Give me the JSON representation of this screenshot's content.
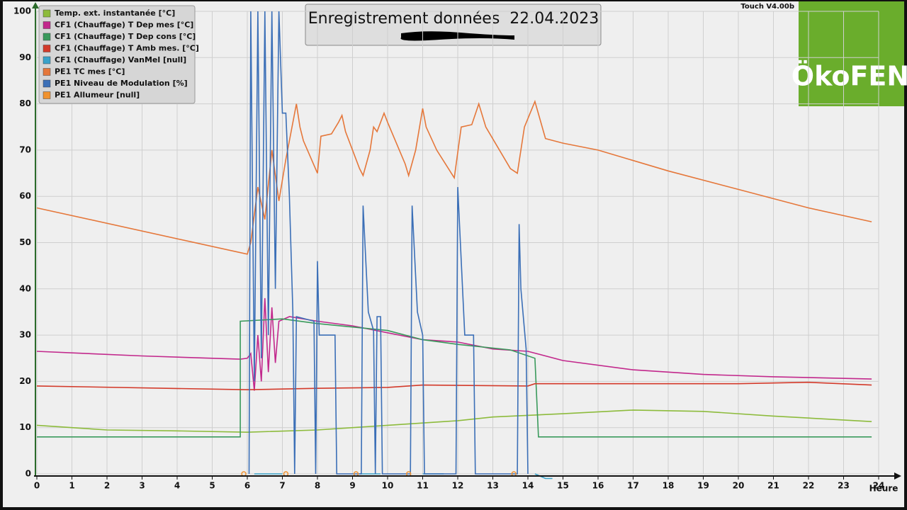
{
  "header": {
    "version": "Touch V4.00b",
    "logo": "ÖkoFEN"
  },
  "chart_data": {
    "type": "line",
    "title": "Enregistrement données  22.04.2023",
    "x_label": "Heure",
    "xlim": [
      0,
      24
    ],
    "ylim": [
      0,
      100
    ],
    "xticks": [
      0,
      1,
      2,
      3,
      4,
      5,
      6,
      7,
      8,
      9,
      10,
      11,
      12,
      13,
      14,
      15,
      16,
      17,
      18,
      19,
      20,
      21,
      22,
      23,
      24
    ],
    "yticks": [
      0,
      10,
      20,
      30,
      40,
      50,
      60,
      70,
      80,
      90,
      100
    ],
    "grid": true,
    "legend": "top-left",
    "series": [
      {
        "name": "Temp. ext. instantanée [°C]",
        "color": "#8dbb3c",
        "x": [
          0,
          2,
          4,
          6,
          8,
          10,
          12,
          13,
          15,
          17,
          19,
          21,
          23.8
        ],
        "values": [
          10.5,
          9.5,
          9.3,
          9,
          9.5,
          10.5,
          11.5,
          12.3,
          13,
          13.8,
          13.5,
          12.5,
          11.3
        ]
      },
      {
        "name": "CF1 (Chauffage) T Dep mes [°C]",
        "color": "#c2288c",
        "x": [
          0,
          3,
          5.8,
          6,
          6.1,
          6.2,
          6.3,
          6.4,
          6.5,
          6.6,
          6.7,
          6.8,
          6.9,
          7.2,
          8,
          9,
          10,
          11,
          12,
          13,
          14,
          15,
          17,
          19,
          21,
          23.8
        ],
        "values": [
          26.5,
          25.5,
          24.8,
          25,
          26,
          18,
          30,
          20,
          38,
          22,
          36,
          24,
          33,
          34,
          33,
          32,
          30.5,
          29,
          28.5,
          27,
          26.5,
          24.5,
          22.5,
          21.5,
          21,
          20.5
        ]
      },
      {
        "name": "CF1 (Chauffage) T Dep cons [°C]",
        "color": "#3a9a5c",
        "x": [
          0,
          5.8,
          5.8,
          7,
          8,
          10,
          11,
          12,
          13.5,
          14.2,
          14.3,
          23.8
        ],
        "values": [
          8,
          8,
          33,
          33.5,
          32.5,
          31,
          29,
          28,
          26.8,
          25,
          8,
          8
        ]
      },
      {
        "name": "CF1 (Chauffage) T Amb mes. [°C]",
        "color": "#d33a2a",
        "x": [
          0,
          6,
          8,
          10,
          11,
          14,
          14.2,
          20,
          22,
          23.8
        ],
        "values": [
          19,
          18.2,
          18.5,
          18.7,
          19.2,
          19,
          19.5,
          19.5,
          19.8,
          19.2
        ]
      },
      {
        "name": "CF1 (Chauffage) VanMel [null]",
        "color": "#3aa2c9",
        "x": [
          6.2,
          7,
          7.1,
          9.2,
          9.8,
          9.9,
          11,
          11.6,
          11.7,
          14.2,
          14.5,
          14.7
        ],
        "values": [
          0,
          0,
          null,
          0,
          0,
          null,
          0,
          0,
          null,
          0,
          -1,
          -1
        ]
      },
      {
        "name": "PE1 TC mes [°C]",
        "color": "#e5773a",
        "x": [
          0,
          6,
          6.1,
          6.3,
          6.5,
          6.7,
          6.9,
          7.1,
          7.4,
          7.5,
          7.6,
          8,
          8.1,
          8.4,
          8.6,
          8.7,
          8.8,
          9.2,
          9.3,
          9.5,
          9.6,
          9.7,
          9.9,
          10,
          10.5,
          10.6,
          10.8,
          11,
          11.1,
          11.4,
          11.9,
          12.1,
          12.4,
          12.6,
          12.8,
          13.5,
          13.7,
          13.9,
          14.2,
          14.5,
          15,
          16,
          18,
          20,
          22,
          23.8
        ],
        "values": [
          57.5,
          47.5,
          50,
          62,
          55,
          70,
          59,
          68,
          80,
          75,
          72,
          65,
          73,
          73.5,
          76,
          77.5,
          74,
          66,
          64.5,
          70,
          75,
          74,
          78,
          76,
          67,
          64.5,
          70,
          79,
          75,
          70,
          64,
          75,
          75.5,
          80,
          75,
          66,
          65,
          75,
          80.5,
          72.5,
          71.5,
          70,
          65.5,
          61.5,
          57.5,
          54.5
        ]
      },
      {
        "name": "PE1 Niveau de Modulation [%]",
        "color": "#3b6fb7",
        "x": [
          6.05,
          6.1,
          6.2,
          6.3,
          6.4,
          6.5,
          6.6,
          6.7,
          6.8,
          6.9,
          7.0,
          7.1,
          7.2,
          7.3,
          7.35,
          7.4,
          7.9,
          7.95,
          8.0,
          8.05,
          8.5,
          8.55,
          9.25,
          9.3,
          9.45,
          9.6,
          9.65,
          9.7,
          9.8,
          9.85,
          10.65,
          10.7,
          10.85,
          11.0,
          11.05,
          11.95,
          12.0,
          12.15,
          12.2,
          12.45,
          12.5,
          12.55,
          13.7,
          13.75,
          13.8,
          13.95,
          14.0
        ],
        "values": [
          0,
          100,
          20,
          100,
          25,
          100,
          30,
          100,
          40,
          100,
          78,
          78,
          60,
          35,
          0,
          34,
          33,
          0,
          46,
          30,
          30,
          0,
          0,
          58,
          35,
          31,
          0,
          34,
          34,
          0,
          0,
          58,
          35,
          30,
          0,
          0,
          62,
          38,
          30,
          30,
          0,
          0,
          0,
          54,
          40,
          27,
          0
        ]
      },
      {
        "name": "PE1 Allumeur [null]",
        "color": "#f0922e",
        "markers": true,
        "x": [
          5.9,
          7.1,
          9.1,
          10.6,
          13.6
        ],
        "values": [
          0,
          0,
          0,
          0,
          0
        ]
      }
    ]
  }
}
